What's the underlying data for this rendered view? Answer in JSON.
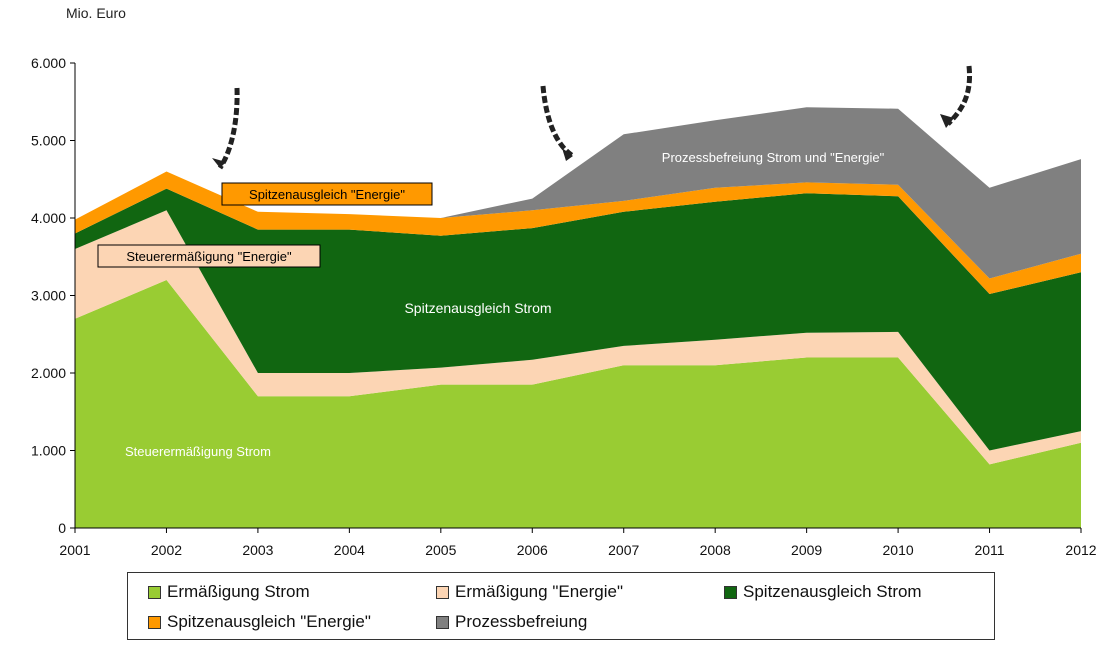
{
  "unit_label": "Mio. Euro",
  "chart_data": {
    "type": "area",
    "stacked": true,
    "x": [
      "2001",
      "2002",
      "2003",
      "2004",
      "2005",
      "2006",
      "2007",
      "2008",
      "2009",
      "2010",
      "2011",
      "2012"
    ],
    "ylim": [
      0,
      6000
    ],
    "yticks": [
      "0",
      "1.000",
      "2.000",
      "3.000",
      "4.000",
      "5.000",
      "6.000"
    ],
    "ytick_values": [
      0,
      1000,
      2000,
      3000,
      4000,
      5000,
      6000
    ],
    "grid": false,
    "legend_position": "bottom",
    "series": [
      {
        "name": "Ermäßigung Strom",
        "color": "#99cc33",
        "values": [
          2700,
          3200,
          1700,
          1700,
          1850,
          1850,
          2100,
          2100,
          2200,
          2200,
          820,
          1100
        ]
      },
      {
        "name": "Ermäßigung \"Energie\"",
        "color": "#fcd5b4",
        "values": [
          900,
          900,
          300,
          300,
          220,
          320,
          250,
          330,
          320,
          330,
          180,
          150
        ]
      },
      {
        "name": "Spitzenausgleich Strom",
        "color": "#116611",
        "values": [
          200,
          280,
          1850,
          1850,
          1700,
          1700,
          1730,
          1780,
          1800,
          1750,
          2020,
          2050
        ]
      },
      {
        "name": "Spitzenausgleich \"Energie\"",
        "color": "#ff9900",
        "values": [
          180,
          220,
          230,
          200,
          230,
          230,
          140,
          180,
          140,
          150,
          200,
          240
        ]
      },
      {
        "name": "Prozessbefreiung",
        "color": "#808080",
        "values": [
          0,
          0,
          0,
          0,
          0,
          150,
          860,
          870,
          970,
          980,
          1170,
          1220
        ]
      }
    ],
    "annotations": [
      {
        "text": "Spitzenausgleich \"Energie\"",
        "boxed": true
      },
      {
        "text": "Steuerermäßigung \"Energie\"",
        "boxed": true
      },
      {
        "text": "Spitzenausgleich Strom",
        "boxed": false
      },
      {
        "text": "Steuerermäßigung Strom",
        "boxed": false
      },
      {
        "text": "Prozessbefreiung Strom und \"Energie\"",
        "boxed": false
      }
    ]
  }
}
